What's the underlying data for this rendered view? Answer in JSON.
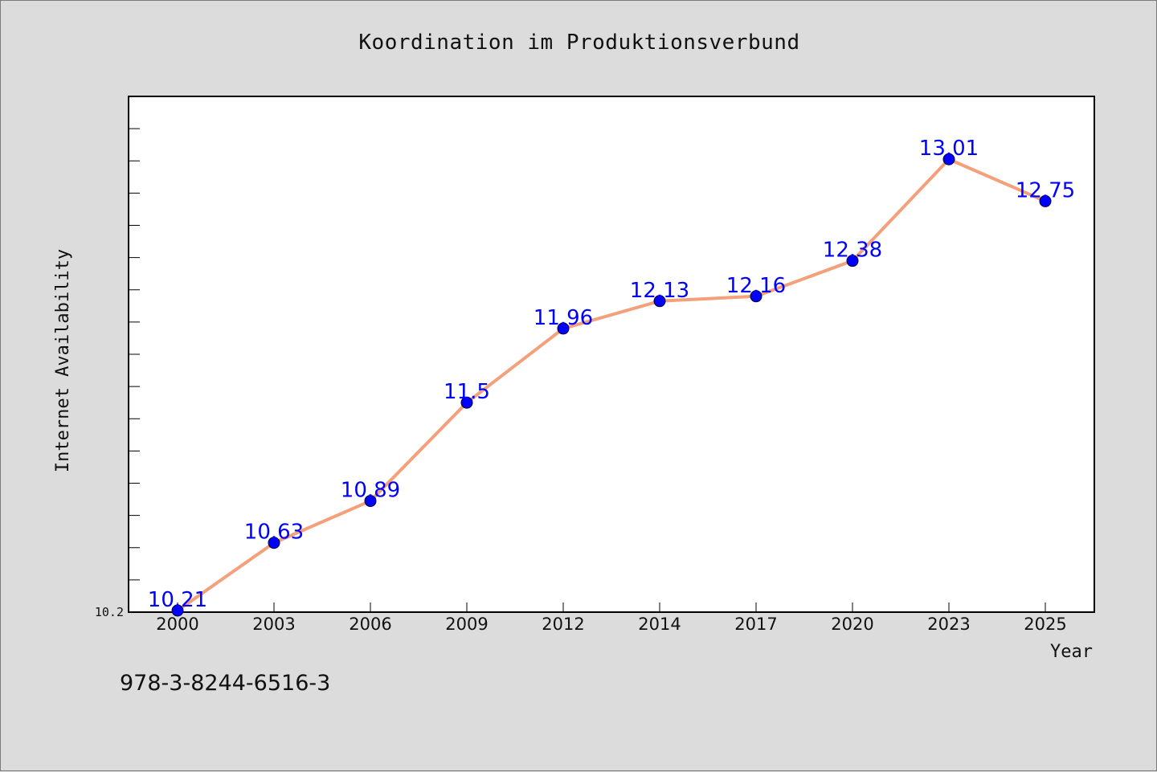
{
  "chart_data": {
    "type": "line",
    "title": "Koordination im Produktionsverbund",
    "xlabel": "Year",
    "ylabel": "Internet Availability",
    "categories": [
      "2000",
      "2003",
      "2006",
      "2009",
      "2012",
      "2014",
      "2017",
      "2020",
      "2023",
      "2025"
    ],
    "series": [
      {
        "values": [
          10.21,
          10.63,
          10.89,
          11.5,
          11.96,
          12.13,
          12.16,
          12.38,
          13.01,
          12.75
        ],
        "labels": [
          "10.21",
          "10.63",
          "10.89",
          "11.5",
          "11.96",
          "12.13",
          "12.16",
          "12.38",
          "13.01",
          "12.75"
        ]
      }
    ],
    "y_tick_label": "10.2",
    "ylim": [
      10.2,
      13.4
    ],
    "grid": false,
    "legend": "none",
    "colors": {
      "line": "#f4a07a",
      "marker": "#0000ff",
      "data_label": "#0000ff",
      "plot_background": "#ffffff",
      "page_background": "#dcdcdc"
    }
  },
  "footer": {
    "isbn": "978-3-8244-6516-3"
  }
}
